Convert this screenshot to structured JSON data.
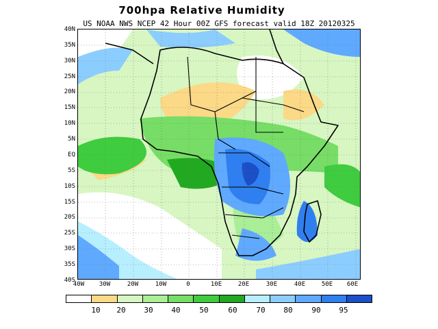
{
  "title": "700hpa Relative Humidity",
  "subtitle": "US NOAA NWS NCEP 42 Hour 00Z GFS forecast valid 18Z 20120325",
  "lat_labels": [
    "40N",
    "35N",
    "30N",
    "25N",
    "20N",
    "15N",
    "10N",
    "5N",
    "EQ",
    "5S",
    "10S",
    "15S",
    "20S",
    "25S",
    "30S",
    "35S",
    "40S"
  ],
  "lon_labels": [
    "40W",
    "30W",
    "20W",
    "10W",
    "0",
    "10E",
    "20E",
    "30E",
    "40E",
    "50E",
    "60E"
  ],
  "colorbar": {
    "colors": [
      "#ffffff",
      "#fbd987",
      "#d7f6c2",
      "#aaee98",
      "#77dd66",
      "#3fcc3f",
      "#21a921",
      "#b7efff",
      "#8ccdff",
      "#5fa9ff",
      "#2f7ff0",
      "#1a4fc7"
    ],
    "labels": [
      "10",
      "20",
      "30",
      "40",
      "50",
      "60",
      "70",
      "80",
      "90",
      "95"
    ]
  },
  "map": {
    "extent": {
      "lon_min": -40,
      "lon_max": 62,
      "lat_min": -40,
      "lat_max": 40
    },
    "colors": {
      "land_outline": "#000000",
      "grid": "#777777"
    }
  }
}
